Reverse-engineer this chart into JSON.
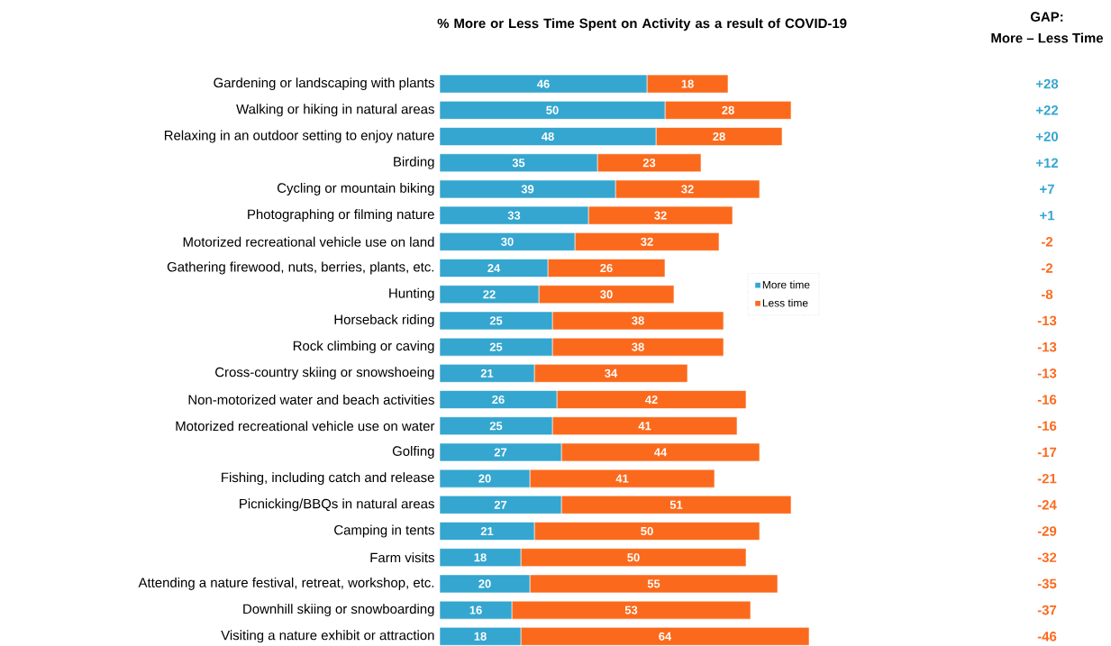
{
  "chart_data": {
    "type": "bar",
    "orientation": "horizontal",
    "stacked": true,
    "title": "% More or Less Time Spent on Activity as a result of COVID-19",
    "categories": [
      "Gardening or landscaping with plants",
      "Walking or hiking in natural areas",
      "Relaxing in an outdoor setting to enjoy nature",
      "Birding",
      "Cycling or mountain biking",
      "Photographing or filming nature",
      "Motorized recreational vehicle use on land",
      "Gathering firewood, nuts, berries, plants, etc.",
      "Hunting",
      "Horseback riding",
      "Rock climbing or caving",
      "Cross-country skiing or snowshoeing",
      "Non-motorized water and beach activities",
      "Motorized recreational vehicle use on water",
      "Golfing",
      "Fishing, including catch and release",
      "Picnicking/BBQs in natural areas",
      "Camping in tents",
      "Farm visits",
      "Attending a nature festival, retreat, workshop, etc.",
      "Downhill skiing or snowboarding",
      "Visiting a nature exhibit or attraction"
    ],
    "series": [
      {
        "name": "More time",
        "color": "#35a6cf",
        "values": [
          46,
          50,
          48,
          35,
          39,
          33,
          30,
          24,
          22,
          25,
          25,
          21,
          26,
          25,
          27,
          20,
          27,
          21,
          18,
          20,
          16,
          18
        ]
      },
      {
        "name": "Less time",
        "color": "#fb6a1c",
        "values": [
          18,
          28,
          28,
          23,
          32,
          32,
          32,
          26,
          30,
          38,
          38,
          34,
          42,
          41,
          44,
          41,
          51,
          50,
          50,
          55,
          53,
          64
        ]
      }
    ],
    "tick_labels": "y",
    "data_labels": true,
    "legend": "right",
    "annotations": [
      "GAP:",
      "More – Less Time",
      "+28",
      "+22",
      "+20",
      "+12",
      "+7",
      "+1",
      "-2",
      "-2",
      "-8",
      "-13",
      "-13",
      "-13",
      "-16",
      "-16",
      "-17",
      "-21",
      "-24",
      "-29",
      "-32",
      "-35",
      "-37",
      "-46"
    ]
  }
}
